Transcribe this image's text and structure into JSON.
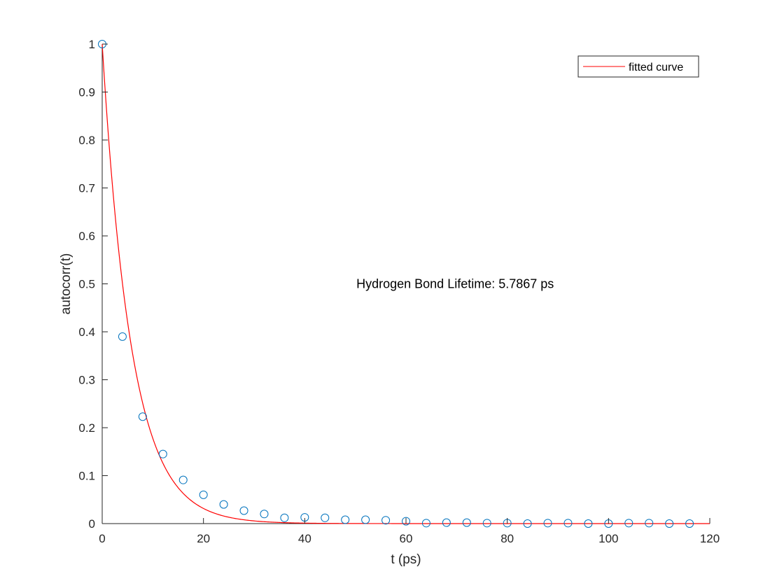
{
  "chart_data": {
    "type": "scatter",
    "xlabel": "t (ps)",
    "ylabel": "autocorr(t)",
    "xlim": [
      0,
      120
    ],
    "ylim": [
      0,
      1
    ],
    "x_ticks": [
      0,
      20,
      40,
      60,
      80,
      100,
      120
    ],
    "x_tick_labels": [
      "0",
      "20",
      "40",
      "60",
      "80",
      "100",
      "120"
    ],
    "y_ticks": [
      0,
      0.1,
      0.2,
      0.3,
      0.4,
      0.5,
      0.6,
      0.7,
      0.8,
      0.9,
      1
    ],
    "y_tick_labels": [
      "0",
      "0.1",
      "0.2",
      "0.3",
      "0.4",
      "0.5",
      "0.6",
      "0.7",
      "0.8",
      "0.9",
      "1"
    ],
    "grid": false,
    "legend_position": "top-right",
    "annotation": "Hydrogen Bond Lifetime: 5.7867 ps",
    "series": [
      {
        "marker": "open-circle",
        "color": "#0072BD",
        "x": [
          0,
          4,
          8,
          12,
          16,
          20,
          24,
          28,
          32,
          36,
          40,
          44,
          48,
          52,
          56,
          60,
          64,
          68,
          72,
          76,
          80,
          84,
          88,
          92,
          96,
          100,
          104,
          108,
          112,
          116
        ],
        "y": [
          1.0,
          0.39,
          0.223,
          0.145,
          0.091,
          0.06,
          0.04,
          0.027,
          0.02,
          0.012,
          0.013,
          0.012,
          0.008,
          0.008,
          0.007,
          0.005,
          0.001,
          0.002,
          0.002,
          0.001,
          0.001,
          0.0,
          0.001,
          0.001,
          0.0,
          0.0,
          0.001,
          0.001,
          0.0,
          0.0
        ]
      },
      {
        "name": "fitted curve",
        "color": "#FF0000",
        "function": "exp(-t/5.7867)",
        "tau": 5.7867
      }
    ]
  }
}
